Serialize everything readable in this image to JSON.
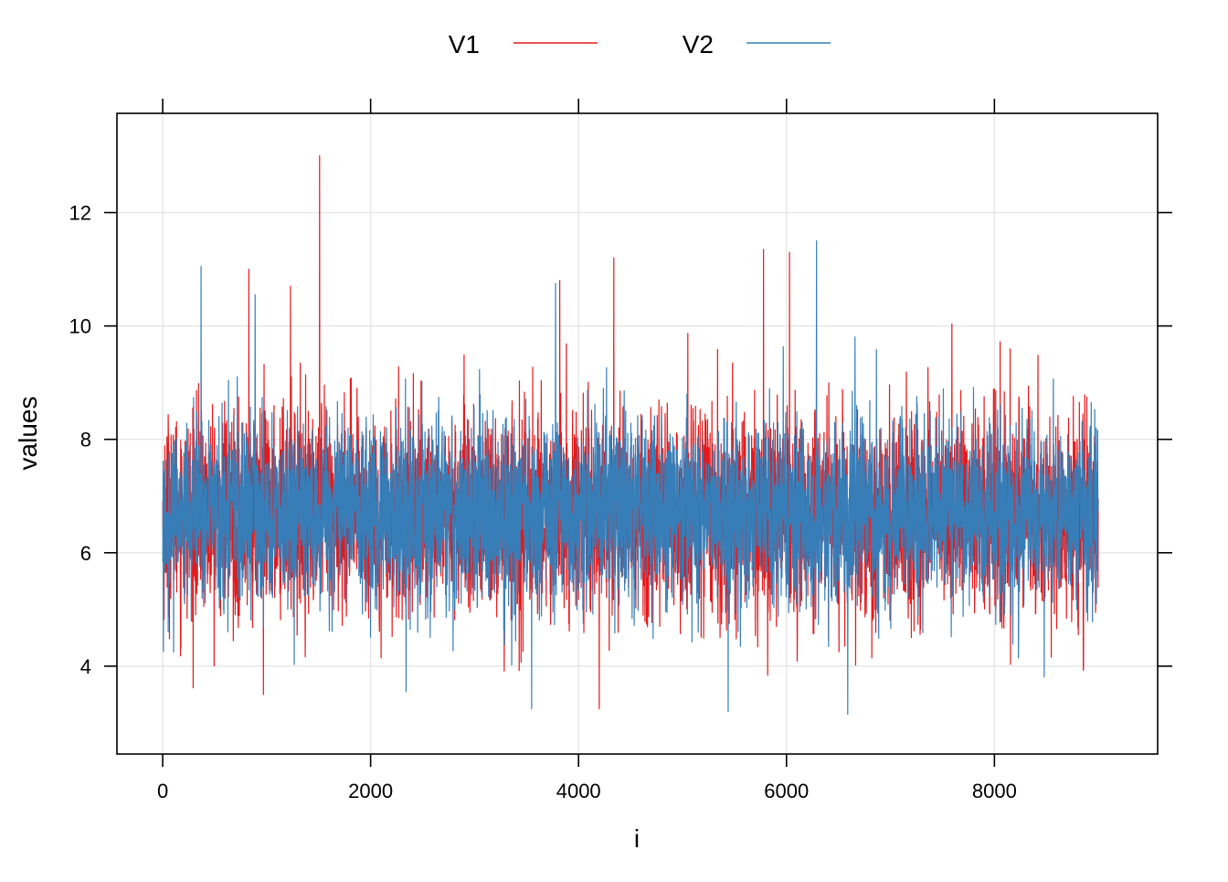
{
  "chart_data": {
    "type": "line",
    "xlabel": "i",
    "ylabel": "values",
    "xlim": [
      -440,
      9570
    ],
    "ylim": [
      2.45,
      13.75
    ],
    "x_ticks": [
      0,
      2000,
      4000,
      6000,
      8000
    ],
    "y_ticks": [
      4,
      6,
      8,
      10,
      12
    ],
    "x_tick_labels": [
      "0",
      "2000",
      "4000",
      "6000",
      "8000"
    ],
    "y_tick_labels": [
      "4",
      "6",
      "8",
      "10",
      "12"
    ],
    "grid": true,
    "legend_placement": "top",
    "n_points": 9000,
    "series": [
      {
        "name": "V1",
        "color": "#e41a1c",
        "x_range": [
          1,
          9000
        ],
        "approx_mean": 6.7,
        "typical_range": [
          4.9,
          8.6
        ],
        "min": 3.25,
        "max": 13.0,
        "notable_spikes": [
          {
            "x": 1510,
            "y": 13.0
          },
          {
            "x": 4340,
            "y": 11.2
          },
          {
            "x": 5780,
            "y": 11.35
          },
          {
            "x": 830,
            "y": 11.0
          },
          {
            "x": 6030,
            "y": 11.3
          },
          {
            "x": 3820,
            "y": 10.8
          },
          {
            "x": 1230,
            "y": 10.7
          },
          {
            "x": 4200,
            "y": 3.25
          },
          {
            "x": 970,
            "y": 3.5
          }
        ]
      },
      {
        "name": "V2",
        "color": "#377eb8",
        "x_range": [
          1,
          9000
        ],
        "approx_mean": 6.7,
        "typical_range": [
          5.0,
          8.4
        ],
        "min": 3.15,
        "max": 11.5,
        "notable_spikes": [
          {
            "x": 6290,
            "y": 11.5
          },
          {
            "x": 370,
            "y": 11.05
          },
          {
            "x": 3780,
            "y": 10.75
          },
          {
            "x": 890,
            "y": 10.55
          },
          {
            "x": 5440,
            "y": 3.2
          },
          {
            "x": 6590,
            "y": 3.15
          },
          {
            "x": 3550,
            "y": 3.25
          }
        ]
      }
    ]
  }
}
